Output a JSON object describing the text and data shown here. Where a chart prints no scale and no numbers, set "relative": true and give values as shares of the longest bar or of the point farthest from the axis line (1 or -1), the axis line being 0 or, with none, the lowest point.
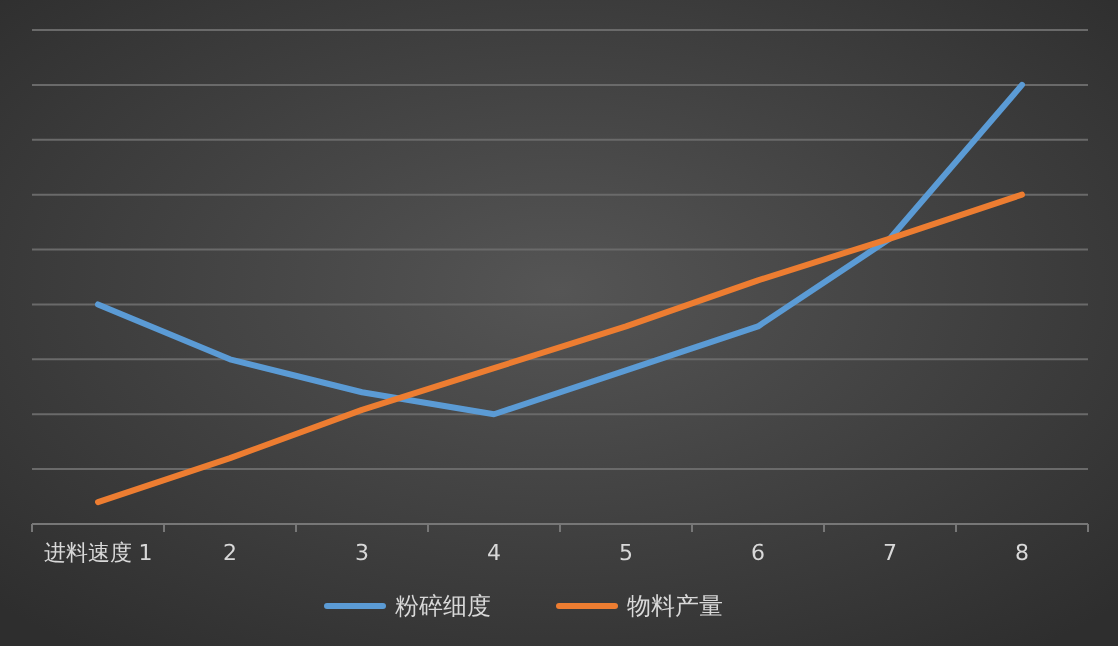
{
  "chart_data": {
    "type": "line",
    "relative": true,
    "categories": [
      "进料速度 1",
      "2",
      "3",
      "4",
      "5",
      "6",
      "7",
      "8"
    ],
    "series": [
      {
        "name": "粉碎细度",
        "color": "#5b9bd5",
        "values": [
          0.5,
          0.375,
          0.3,
          0.25,
          0.35,
          0.45,
          0.65,
          1
        ]
      },
      {
        "name": "物料产量",
        "color": "#ed7d31",
        "values": [
          0.05,
          0.15,
          0.26,
          0.355,
          0.45,
          0.555,
          0.65,
          0.75
        ]
      }
    ],
    "grid": "y",
    "legend": "bottom",
    "marker": "none",
    "line_style": "solid"
  }
}
